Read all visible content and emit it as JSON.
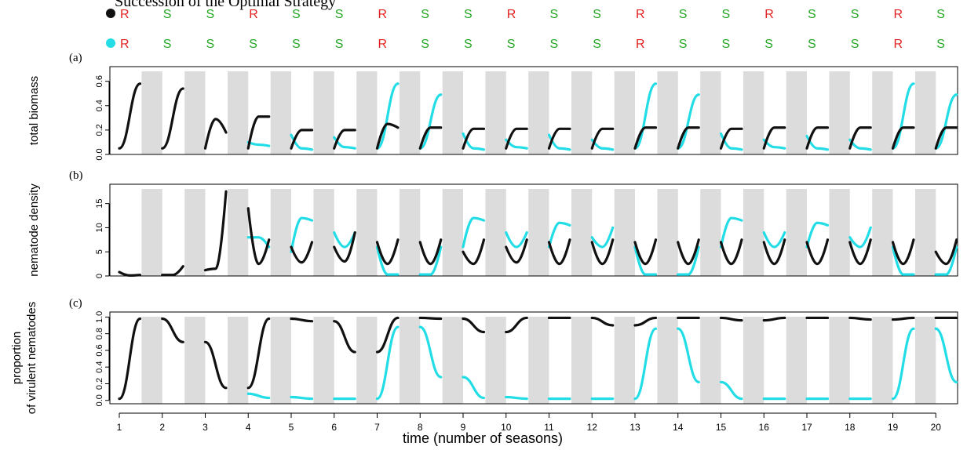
{
  "title": "Succession of the Optimal Strategy",
  "colors": {
    "black": "#111111",
    "cyan": "#22dde6",
    "R": "#e32020",
    "S": "#22a722",
    "shade": "#dcdcdc"
  },
  "strategies": [
    {
      "name": "black",
      "seq": [
        "R",
        "S",
        "S",
        "R",
        "S",
        "S",
        "R",
        "S",
        "S",
        "R",
        "S",
        "S",
        "R",
        "S",
        "S",
        "R",
        "S",
        "S",
        "R",
        "S"
      ]
    },
    {
      "name": "cyan",
      "seq": [
        "R",
        "S",
        "S",
        "S",
        "S",
        "S",
        "R",
        "S",
        "S",
        "S",
        "S",
        "S",
        "R",
        "S",
        "S",
        "S",
        "S",
        "S",
        "R",
        "S"
      ]
    }
  ],
  "xlabel": "time (number of seasons)",
  "xticks": [
    1,
    2,
    3,
    4,
    5,
    6,
    7,
    8,
    9,
    10,
    11,
    12,
    13,
    14,
    15,
    16,
    17,
    18,
    19,
    20
  ],
  "chart_data": [
    {
      "type": "line",
      "panel_label": "(a)",
      "ylabel": "total biomass",
      "ylim": [
        0,
        0.72
      ],
      "yticks": [
        0,
        0.2,
        0.4,
        0.6
      ],
      "yticklabels": [
        "0.0",
        "0.2",
        "0.4",
        "0.6"
      ],
      "series": [
        {
          "color": "black",
          "segments": [
            [
              0.05,
              0.58
            ],
            [
              0.05,
              0.54
            ],
            [
              0.05,
              0.29,
              0.18
            ],
            [
              0.05,
              0.31,
              0.31
            ],
            [
              0.05,
              0.2,
              0.2
            ],
            [
              0.05,
              0.2,
              0.2
            ],
            [
              0.05,
              0.25,
              0.22
            ],
            [
              0.05,
              0.22,
              0.22
            ],
            [
              0.05,
              0.21,
              0.21
            ],
            [
              0.05,
              0.21,
              0.21
            ],
            [
              0.05,
              0.21,
              0.21
            ],
            [
              0.05,
              0.21,
              0.21
            ],
            [
              0.05,
              0.22,
              0.22
            ],
            [
              0.05,
              0.22,
              0.22
            ],
            [
              0.05,
              0.21,
              0.21
            ],
            [
              0.05,
              0.22,
              0.22
            ],
            [
              0.05,
              0.22,
              0.22
            ],
            [
              0.05,
              0.22,
              0.22
            ],
            [
              0.05,
              0.22,
              0.22
            ],
            [
              0.05,
              0.22,
              0.22
            ]
          ]
        },
        {
          "color": "cyan",
          "segments": [
            null,
            null,
            null,
            [
              0.1,
              0.08,
              0.07
            ],
            [
              0.16,
              0.05,
              0.04
            ],
            [
              0.14,
              0.06,
              0.05
            ],
            [
              0.05,
              0.58
            ],
            [
              0.05,
              0.49
            ],
            [
              0.17,
              0.05,
              0.04
            ],
            [
              0.12,
              0.06,
              0.05
            ],
            [
              0.16,
              0.05,
              0.04
            ],
            [
              0.12,
              0.05,
              0.04
            ],
            [
              0.05,
              0.58
            ],
            [
              0.05,
              0.49
            ],
            [
              0.17,
              0.05,
              0.04
            ],
            [
              0.12,
              0.06,
              0.05
            ],
            [
              0.15,
              0.05,
              0.04
            ],
            [
              0.12,
              0.05,
              0.04
            ],
            [
              0.05,
              0.58
            ],
            [
              0.05,
              0.49
            ]
          ]
        }
      ]
    },
    {
      "type": "line",
      "panel_label": "(b)",
      "ylabel": "nematode density",
      "ylim": [
        0,
        19
      ],
      "yticks": [
        0,
        5,
        10,
        15
      ],
      "yticklabels": [
        "0",
        "5",
        "10",
        "15"
      ],
      "series": [
        {
          "color": "black",
          "segments": [
            [
              0.8,
              0.1,
              0.2
            ],
            [
              0.2,
              0.2,
              2.0
            ],
            [
              1.2,
              1.5,
              17.5
            ],
            [
              14.0,
              2.5,
              7.5
            ],
            [
              6.0,
              2.8,
              7.0
            ],
            [
              6.0,
              3.0,
              9.0
            ],
            [
              7.0,
              2.5,
              7.5
            ],
            [
              7.0,
              2.5,
              7.5
            ],
            [
              5.0,
              2.5,
              7.5
            ],
            [
              6.0,
              2.8,
              7.5
            ],
            [
              7.0,
              2.5,
              7.5
            ],
            [
              7.0,
              2.5,
              7.5
            ],
            [
              7.0,
              2.5,
              7.5
            ],
            [
              7.0,
              2.5,
              7.5
            ],
            [
              7.0,
              2.5,
              7.5
            ],
            [
              7.0,
              2.5,
              7.5
            ],
            [
              7.0,
              2.5,
              7.5
            ],
            [
              7.0,
              2.5,
              7.5
            ],
            [
              7.0,
              2.5,
              7.5
            ],
            [
              5.0,
              2.5,
              7.5
            ]
          ]
        },
        {
          "color": "cyan",
          "segments": [
            null,
            null,
            null,
            [
              8.0,
              8.0,
              6.0
            ],
            [
              5.0,
              12.0,
              11.5
            ],
            [
              9.0,
              6.0,
              9.0
            ],
            [
              6.0,
              0.3,
              0.3
            ],
            [
              0.3,
              0.3,
              6.0
            ],
            [
              6.0,
              12.0,
              11.5
            ],
            [
              9.0,
              6.0,
              9.0
            ],
            [
              6.0,
              11.0,
              10.5
            ],
            [
              8.0,
              6.0,
              10.0
            ],
            [
              6.0,
              0.3,
              0.3
            ],
            [
              0.3,
              0.3,
              6.0
            ],
            [
              6.0,
              12.0,
              11.5
            ],
            [
              9.0,
              6.0,
              9.0
            ],
            [
              6.0,
              11.0,
              10.5
            ],
            [
              8.0,
              6.0,
              10.0
            ],
            [
              6.0,
              0.3,
              0.3
            ],
            [
              0.3,
              0.3,
              6.0
            ]
          ]
        }
      ]
    },
    {
      "type": "line",
      "panel_label": "(c)",
      "ylabel": "proportion of virulent nematodes",
      "ylim": [
        -0.04,
        1.06
      ],
      "yticks": [
        0,
        0.2,
        0.4,
        0.6,
        0.8,
        1.0
      ],
      "yticklabels": [
        "0.0",
        "0.2",
        "0.4",
        "0.6",
        "0.8",
        "1.0"
      ],
      "series": [
        {
          "color": "black",
          "segments": [
            [
              0.02,
              0.98
            ],
            [
              0.98,
              0.7
            ],
            [
              0.7,
              0.15
            ],
            [
              0.15,
              0.98
            ],
            [
              0.98,
              0.95
            ],
            [
              0.95,
              0.58
            ],
            [
              0.58,
              0.99
            ],
            [
              0.99,
              0.98
            ],
            [
              0.98,
              0.82
            ],
            [
              0.82,
              0.99
            ],
            [
              0.99,
              0.99
            ],
            [
              0.99,
              0.9
            ],
            [
              0.9,
              0.99
            ],
            [
              0.99,
              0.99
            ],
            [
              0.99,
              0.96
            ],
            [
              0.96,
              0.99
            ],
            [
              0.99,
              0.99
            ],
            [
              0.99,
              0.97
            ],
            [
              0.97,
              0.99
            ],
            [
              0.99,
              0.99
            ]
          ]
        },
        {
          "color": "cyan",
          "segments": [
            null,
            null,
            null,
            [
              0.08,
              0.03
            ],
            [
              0.04,
              0.02
            ],
            [
              0.02,
              0.02
            ],
            [
              0.02,
              0.88
            ],
            [
              0.88,
              0.28
            ],
            [
              0.28,
              0.03
            ],
            [
              0.04,
              0.02
            ],
            [
              0.02,
              0.02
            ],
            [
              0.02,
              0.02
            ],
            [
              0.02,
              0.86
            ],
            [
              0.86,
              0.22
            ],
            [
              0.22,
              0.02
            ],
            [
              0.02,
              0.02
            ],
            [
              0.02,
              0.02
            ],
            [
              0.02,
              0.02
            ],
            [
              0.02,
              0.86
            ],
            [
              0.86,
              0.22
            ]
          ]
        }
      ]
    }
  ]
}
